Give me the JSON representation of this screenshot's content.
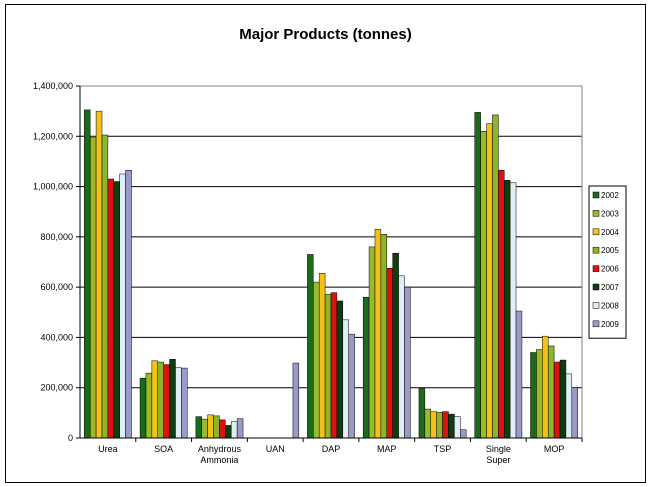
{
  "chart_data": {
    "type": "bar",
    "title": "Major Products (tonnes)",
    "categories": [
      "Urea",
      "SOA",
      "Anhydrous\nAmmonia",
      "UAN",
      "DAP",
      "MAP",
      "TSP",
      "Single\nSuper",
      "MOP"
    ],
    "ylim": [
      0,
      1400000
    ],
    "yticks": [
      "0",
      "200,000",
      "400,000",
      "600,000",
      "800,000",
      "1,000,000",
      "1,200,000",
      "1,400,000"
    ],
    "grid": true,
    "legend_position": "right",
    "series": [
      {
        "name": "2002",
        "color": "#1a6b1a",
        "values": [
          1305000,
          238000,
          85000,
          0,
          730000,
          560000,
          197000,
          1295000,
          340000
        ]
      },
      {
        "name": "2003",
        "color": "#9aba2a",
        "values": [
          1195000,
          258000,
          75000,
          0,
          620000,
          760000,
          115000,
          1220000,
          352000
        ]
      },
      {
        "name": "2004",
        "color": "#f2c21b",
        "values": [
          1300000,
          307000,
          92000,
          0,
          655000,
          830000,
          105000,
          1250000,
          405000
        ]
      },
      {
        "name": "2005",
        "color": "#8db52a",
        "values": [
          1205000,
          302000,
          88000,
          0,
          572000,
          810000,
          102000,
          1285000,
          366000
        ]
      },
      {
        "name": "2006",
        "color": "#dd1111",
        "values": [
          1030000,
          292000,
          72000,
          0,
          578000,
          675000,
          105000,
          1065000,
          302000
        ]
      },
      {
        "name": "2007",
        "color": "#0f3d0f",
        "values": [
          1020000,
          313000,
          50000,
          0,
          545000,
          735000,
          95000,
          1025000,
          310000
        ]
      },
      {
        "name": "2008",
        "color": "#e2eef5",
        "values": [
          1050000,
          280000,
          65000,
          0,
          470000,
          645000,
          85000,
          1015000,
          255000
        ]
      },
      {
        "name": "2009",
        "color": "#9a9ac8",
        "values": [
          1065000,
          278000,
          77000,
          298000,
          413000,
          600000,
          33000,
          505000,
          200000
        ]
      }
    ]
  }
}
